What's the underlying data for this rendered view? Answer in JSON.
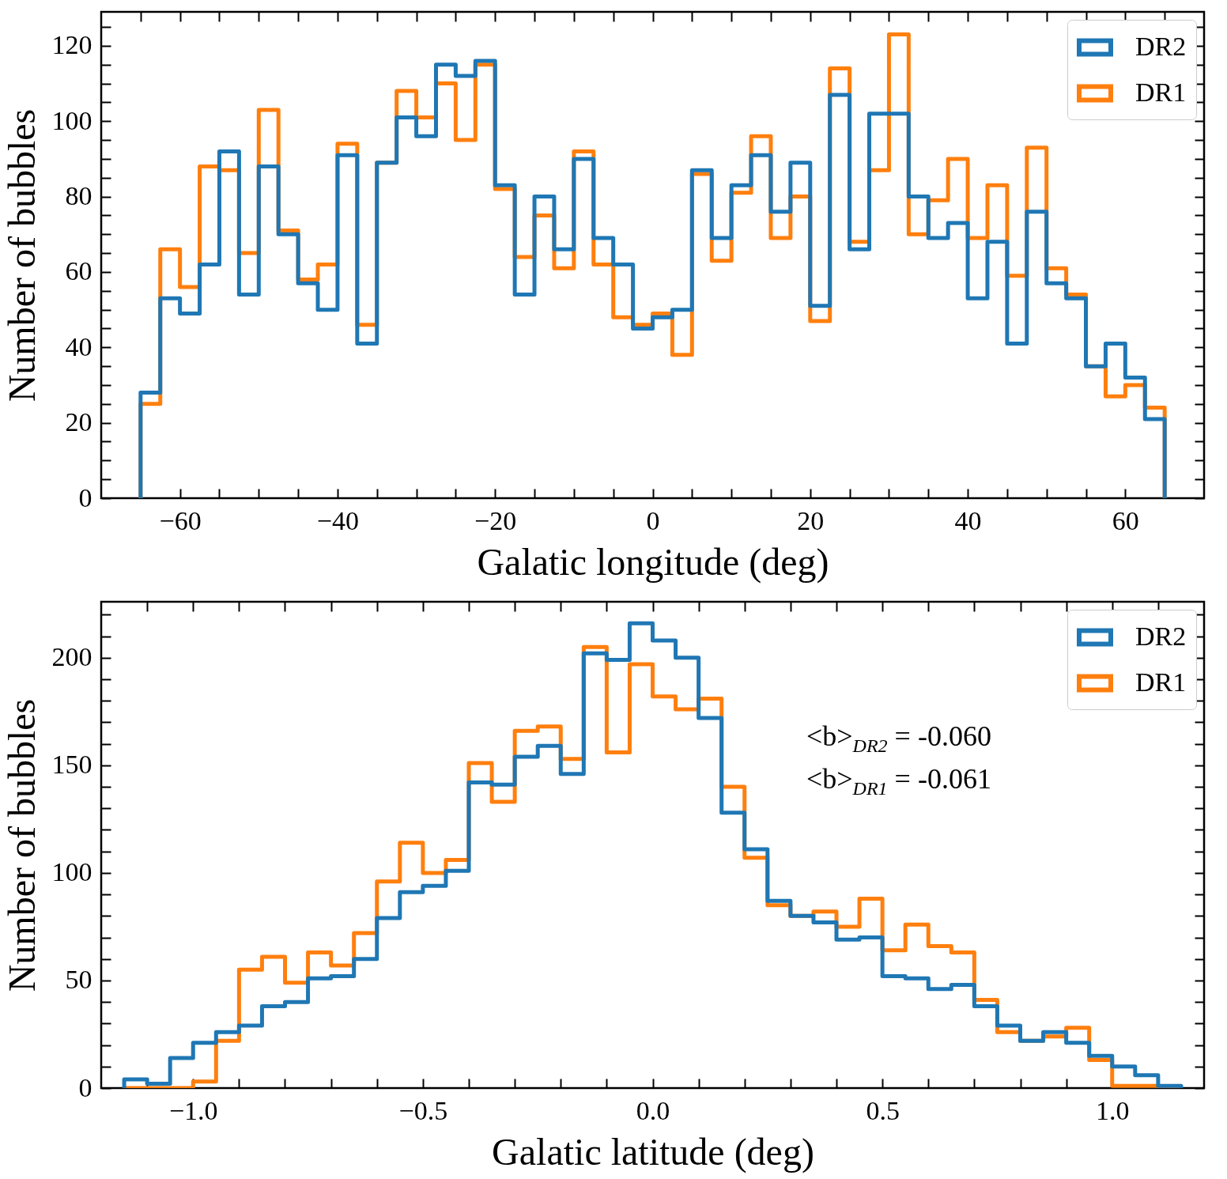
{
  "chart_data": [
    {
      "type": "histogram",
      "xlabel": "Galatic longitude (deg)",
      "ylabel": "Number of bubbles",
      "legend": "top right",
      "bins": [
        -65,
        -62.5,
        -60,
        -57.5,
        -55,
        -52.5,
        -50,
        -47.5,
        -45,
        -42.5,
        -40,
        -37.5,
        -35,
        -32.5,
        -30,
        -27.5,
        -25,
        -22.5,
        -20,
        -17.5,
        -15,
        -12.5,
        -10,
        -7.5,
        -5,
        -2.5,
        0,
        2.5,
        5,
        7.5,
        10,
        12.5,
        15,
        17.5,
        20,
        22.5,
        25,
        27.5,
        30,
        32.5,
        35,
        37.5,
        40,
        42.5,
        45,
        47.5,
        50,
        52.5,
        55,
        57.5,
        60,
        62.5,
        65
      ],
      "series": [
        {
          "name": "DR2",
          "color": "#1f77b4",
          "values": [
            28,
            53,
            49,
            62,
            92,
            54,
            88,
            70,
            57,
            50,
            91,
            41,
            89,
            101,
            96,
            115,
            112,
            116,
            83,
            54,
            80,
            66,
            90,
            69,
            62,
            45,
            48,
            50,
            87,
            69,
            83,
            91,
            76,
            89,
            51,
            107,
            66,
            102,
            102,
            80,
            69,
            73,
            53,
            68,
            41,
            76,
            57,
            53,
            35,
            41,
            32,
            21
          ]
        },
        {
          "name": "DR1",
          "color": "#ff7f0e",
          "values": [
            25,
            66,
            56,
            88,
            87,
            65,
            103,
            71,
            58,
            62,
            94,
            46,
            89,
            108,
            101,
            110,
            95,
            115,
            82,
            64,
            75,
            61,
            92,
            62,
            48,
            46,
            49,
            38,
            86,
            63,
            81,
            96,
            69,
            80,
            47,
            114,
            68,
            87,
            123,
            70,
            79,
            90,
            69,
            83,
            59,
            93,
            61,
            54,
            35,
            27,
            30,
            24
          ]
        }
      ],
      "xlim": [
        -70,
        70
      ],
      "ylim": [
        0,
        129
      ],
      "xticks": [
        {
          "value": -65,
          "label": null
        },
        {
          "value": -60,
          "label": "−60"
        },
        {
          "value": -55,
          "label": null
        },
        {
          "value": -50,
          "label": null
        },
        {
          "value": -45,
          "label": null
        },
        {
          "value": -40,
          "label": "−40"
        },
        {
          "value": -35,
          "label": null
        },
        {
          "value": -30,
          "label": null
        },
        {
          "value": -25,
          "label": null
        },
        {
          "value": -20,
          "label": "−20"
        },
        {
          "value": -15,
          "label": null
        },
        {
          "value": -10,
          "label": null
        },
        {
          "value": -5,
          "label": null
        },
        0,
        {
          "value": 5,
          "label": null
        },
        {
          "value": 10,
          "label": null
        },
        {
          "value": 15,
          "label": null
        },
        20,
        {
          "value": 25,
          "label": null
        },
        {
          "value": 30,
          "label": null
        },
        {
          "value": 35,
          "label": null
        },
        40,
        {
          "value": 45,
          "label": null
        },
        {
          "value": 50,
          "label": null
        },
        {
          "value": 55,
          "label": null
        },
        60,
        {
          "value": 65,
          "label": null
        }
      ],
      "yticks": [
        0,
        {
          "value": 5,
          "label": null
        },
        {
          "value": 10,
          "label": null
        },
        {
          "value": 15,
          "label": null
        },
        20,
        {
          "value": 25,
          "label": null
        },
        {
          "value": 30,
          "label": null
        },
        {
          "value": 35,
          "label": null
        },
        40,
        {
          "value": 45,
          "label": null
        },
        {
          "value": 50,
          "label": null
        },
        {
          "value": 55,
          "label": null
        },
        60,
        {
          "value": 65,
          "label": null
        },
        {
          "value": 70,
          "label": null
        },
        {
          "value": 75,
          "label": null
        },
        80,
        {
          "value": 85,
          "label": null
        },
        {
          "value": 90,
          "label": null
        },
        {
          "value": 95,
          "label": null
        },
        100,
        {
          "value": 105,
          "label": null
        },
        {
          "value": 110,
          "label": null
        },
        {
          "value": 115,
          "label": null
        },
        120,
        {
          "value": 125,
          "label": null
        }
      ]
    },
    {
      "type": "histogram",
      "xlabel": "Galatic latitude (deg)",
      "ylabel": "Number of bubbles",
      "legend": "top right",
      "annotations": [
        "<b>$_{DR2}$ = -0.060",
        "<b>$_{DR1}$ = -0.061"
      ],
      "bins": [
        -1.15,
        -1.1,
        -1.05,
        -1.0,
        -0.95,
        -0.9,
        -0.85,
        -0.8,
        -0.75,
        -0.7,
        -0.65,
        -0.6,
        -0.55,
        -0.5,
        -0.45,
        -0.4,
        -0.35,
        -0.3,
        -0.25,
        -0.2,
        -0.15,
        -0.1,
        -0.05,
        0,
        0.05,
        0.1,
        0.15,
        0.2,
        0.25,
        0.3,
        0.35,
        0.4,
        0.45,
        0.5,
        0.55,
        0.6,
        0.65,
        0.7,
        0.75,
        0.8,
        0.85,
        0.9,
        0.95,
        1.0,
        1.05,
        1.1,
        1.15
      ],
      "series": [
        {
          "name": "DR2",
          "color": "#1f77b4",
          "values": [
            4,
            2,
            14,
            21,
            26,
            29,
            38,
            40,
            51,
            52,
            60,
            79,
            91,
            94,
            101,
            142,
            141,
            154,
            159,
            146,
            202,
            199,
            216,
            208,
            200,
            172,
            128,
            111,
            87,
            80,
            77,
            69,
            70,
            52,
            51,
            46,
            48,
            38,
            29,
            22,
            26,
            21,
            15,
            10,
            6,
            1
          ]
        },
        {
          "name": "DR1",
          "color": "#ff7f0e",
          "values": [
            0,
            0,
            0,
            3,
            22,
            55,
            61,
            49,
            63,
            57,
            72,
            96,
            114,
            100,
            106,
            151,
            133,
            166,
            168,
            153,
            205,
            156,
            197,
            182,
            176,
            181,
            140,
            107,
            85,
            80,
            82,
            75,
            88,
            64,
            76,
            66,
            63,
            41,
            26,
            22,
            24,
            28,
            13,
            1,
            1,
            0
          ]
        }
      ],
      "xlim": [
        -1.2,
        1.2
      ],
      "ylim": [
        0,
        226
      ],
      "xticks": [
        {
          "value": -1.1,
          "label": null
        },
        {
          "value": -1.0,
          "label": "−1.0"
        },
        {
          "value": -0.9,
          "label": null
        },
        {
          "value": -0.8,
          "label": null
        },
        {
          "value": -0.7,
          "label": null
        },
        {
          "value": -0.6,
          "label": null
        },
        {
          "value": -0.5,
          "label": "−0.5"
        },
        {
          "value": -0.4,
          "label": null
        },
        {
          "value": -0.3,
          "label": null
        },
        {
          "value": -0.2,
          "label": null
        },
        {
          "value": -0.1,
          "label": null
        },
        {
          "value": 0,
          "label": "0.0"
        },
        {
          "value": 0.1,
          "label": null
        },
        {
          "value": 0.2,
          "label": null
        },
        {
          "value": 0.3,
          "label": null
        },
        {
          "value": 0.4,
          "label": null
        },
        0.5,
        {
          "value": 0.6,
          "label": null
        },
        {
          "value": 0.7,
          "label": null
        },
        {
          "value": 0.8,
          "label": null
        },
        {
          "value": 0.9,
          "label": null
        },
        {
          "value": 1.0,
          "label": "1.0"
        },
        {
          "value": 1.1,
          "label": null
        }
      ],
      "yticks": [
        0,
        {
          "value": 10,
          "label": null
        },
        {
          "value": 20,
          "label": null
        },
        {
          "value": 30,
          "label": null
        },
        {
          "value": 40,
          "label": null
        },
        50,
        {
          "value": 60,
          "label": null
        },
        {
          "value": 70,
          "label": null
        },
        {
          "value": 80,
          "label": null
        },
        {
          "value": 90,
          "label": null
        },
        100,
        {
          "value": 110,
          "label": null
        },
        {
          "value": 120,
          "label": null
        },
        {
          "value": 130,
          "label": null
        },
        {
          "value": 140,
          "label": null
        },
        150,
        {
          "value": 160,
          "label": null
        },
        {
          "value": 170,
          "label": null
        },
        {
          "value": 180,
          "label": null
        },
        {
          "value": 190,
          "label": null
        },
        200,
        {
          "value": 210,
          "label": null
        },
        {
          "value": 220,
          "label": null
        }
      ]
    }
  ]
}
